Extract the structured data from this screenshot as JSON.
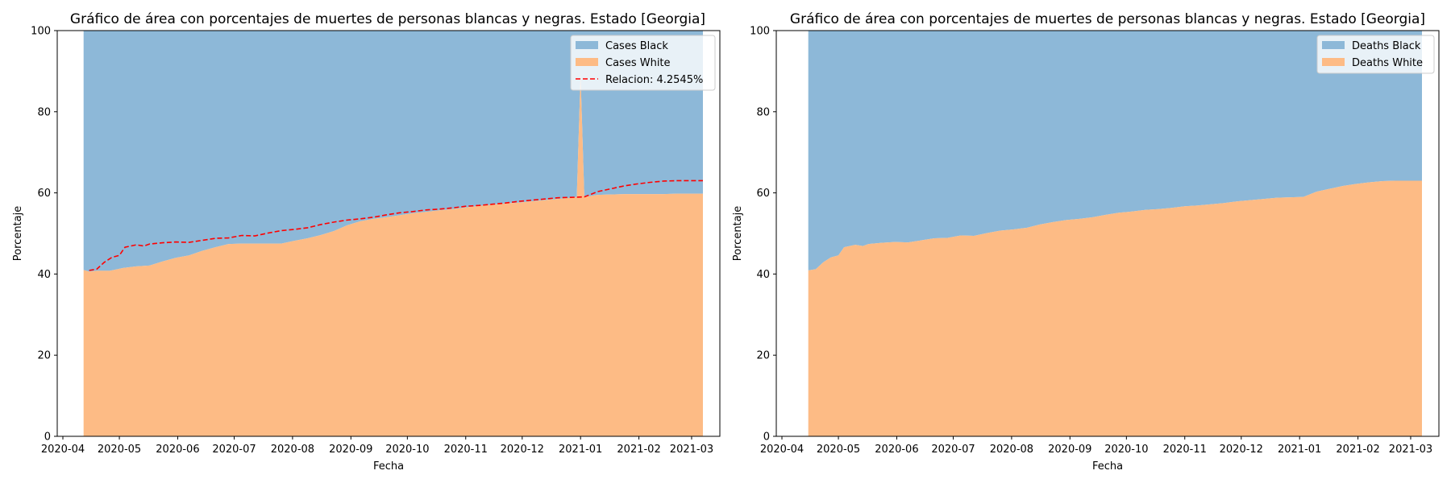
{
  "colors": {
    "black_area": "#8db8d8",
    "white_area": "#fdbb85",
    "relation_line": "#ff0000",
    "axis": "#000000"
  },
  "chart_data": [
    {
      "type": "area",
      "stacked": true,
      "title": "Gráfico de área con porcentajes de muertes de personas blancas y negras. Estado [Georgia]",
      "xlabel": "Fecha",
      "ylabel": "Porcentaje",
      "ylim": [
        0,
        100
      ],
      "xlim": [
        "2020-03-29",
        "2021-03-16"
      ],
      "yticks": [
        "0",
        "20",
        "40",
        "60",
        "80",
        "100"
      ],
      "xticks": [
        "2020-04",
        "2020-05",
        "2020-06",
        "2020-07",
        "2020-08",
        "2020-09",
        "2020-10",
        "2020-11",
        "2020-12",
        "2021-01",
        "2021-02",
        "2021-03"
      ],
      "legend_position": "top-right",
      "x": [
        "2020-04-12",
        "2020-04-15",
        "2020-04-19",
        "2020-04-26",
        "2020-05-03",
        "2020-05-10",
        "2020-05-17",
        "2020-05-24",
        "2020-05-31",
        "2020-06-07",
        "2020-06-14",
        "2020-06-21",
        "2020-06-28",
        "2020-07-05",
        "2020-07-12",
        "2020-07-19",
        "2020-07-26",
        "2020-08-02",
        "2020-08-09",
        "2020-08-16",
        "2020-08-23",
        "2020-08-30",
        "2020-09-06",
        "2020-09-13",
        "2020-09-20",
        "2020-09-27",
        "2020-10-04",
        "2020-10-11",
        "2020-10-18",
        "2020-10-25",
        "2020-11-01",
        "2020-11-08",
        "2020-11-15",
        "2020-11-22",
        "2020-11-29",
        "2020-12-06",
        "2020-12-13",
        "2020-12-20",
        "2020-12-27",
        "2020-12-30",
        "2021-01-01",
        "2021-01-03",
        "2021-01-06",
        "2021-01-10",
        "2021-01-17",
        "2021-01-24",
        "2021-01-31",
        "2021-02-07",
        "2021-02-14",
        "2021-02-21",
        "2021-02-28",
        "2021-03-07"
      ],
      "series": [
        {
          "name": "Cases White",
          "values": [
            41,
            40.6,
            40.8,
            40.8,
            41.5,
            41.9,
            42.1,
            43.1,
            44.0,
            44.6,
            45.7,
            46.6,
            47.4,
            47.5,
            47.5,
            47.5,
            47.5,
            48.2,
            48.8,
            49.6,
            50.6,
            52.0,
            53.0,
            53.6,
            54.0,
            54.5,
            55.0,
            55.3,
            55.7,
            56.0,
            56.4,
            56.8,
            57.1,
            57.4,
            57.6,
            57.9,
            58.2,
            58.5,
            58.8,
            59.0,
            89.0,
            59.0,
            59.2,
            59.5,
            59.6,
            59.7,
            59.7,
            59.7,
            59.7,
            59.8,
            59.8,
            59.8
          ]
        },
        {
          "name": "Cases Black",
          "values": [
            59,
            59.4,
            59.2,
            59.2,
            58.5,
            58.1,
            57.9,
            56.9,
            56.0,
            55.4,
            54.3,
            53.4,
            52.6,
            52.5,
            52.5,
            52.5,
            52.5,
            51.8,
            51.2,
            50.4,
            49.4,
            48.0,
            47.0,
            46.4,
            46.0,
            45.5,
            45.0,
            44.7,
            44.3,
            44.0,
            43.6,
            43.2,
            42.9,
            42.6,
            42.4,
            42.1,
            41.8,
            41.5,
            41.2,
            41.0,
            11.0,
            41.0,
            40.8,
            40.5,
            40.4,
            40.3,
            40.3,
            40.3,
            40.3,
            40.2,
            40.2,
            40.2
          ]
        }
      ],
      "relation_line": {
        "name": "Relacion: 4.2545%",
        "x": [
          "2020-04-15",
          "2020-04-19",
          "2020-04-23",
          "2020-04-27",
          "2020-05-01",
          "2020-05-04",
          "2020-05-10",
          "2020-05-14",
          "2020-05-17",
          "2020-05-24",
          "2020-05-31",
          "2020-06-07",
          "2020-06-14",
          "2020-06-21",
          "2020-06-28",
          "2020-07-05",
          "2020-07-12",
          "2020-07-19",
          "2020-07-26",
          "2020-08-02",
          "2020-08-09",
          "2020-08-16",
          "2020-08-23",
          "2020-08-30",
          "2020-09-06",
          "2020-09-13",
          "2020-09-20",
          "2020-09-27",
          "2020-10-04",
          "2020-10-11",
          "2020-10-18",
          "2020-10-25",
          "2020-11-01",
          "2020-11-08",
          "2020-11-15",
          "2020-11-22",
          "2020-11-29",
          "2020-12-06",
          "2020-12-13",
          "2020-12-20",
          "2020-12-27",
          "2021-01-03",
          "2021-01-10",
          "2021-01-17",
          "2021-01-24",
          "2021-01-31",
          "2021-02-07",
          "2021-02-14",
          "2021-02-21",
          "2021-02-28",
          "2021-03-07"
        ],
        "values": [
          40.9,
          41.2,
          42.9,
          44.1,
          44.6,
          46.6,
          47.2,
          46.9,
          47.4,
          47.7,
          47.9,
          47.8,
          48.3,
          48.8,
          48.9,
          49.5,
          49.4,
          50.1,
          50.7,
          51.0,
          51.4,
          52.2,
          52.8,
          53.3,
          53.6,
          54.0,
          54.6,
          55.1,
          55.4,
          55.8,
          56.0,
          56.3,
          56.7,
          56.9,
          57.2,
          57.5,
          57.9,
          58.2,
          58.5,
          58.8,
          58.9,
          59.0,
          60.3,
          61.0,
          61.7,
          62.2,
          62.6,
          62.9,
          63.0,
          63.0,
          63.0
        ]
      }
    },
    {
      "type": "area",
      "stacked": true,
      "title": "Gráfico de área con porcentajes de muertes de personas blancas y negras. Estado [Georgia]",
      "xlabel": "Fecha",
      "ylabel": "Porcentaje",
      "ylim": [
        0,
        100
      ],
      "xlim": [
        "2020-03-29",
        "2021-03-16"
      ],
      "yticks": [
        "0",
        "20",
        "40",
        "60",
        "80",
        "100"
      ],
      "xticks": [
        "2020-04",
        "2020-05",
        "2020-06",
        "2020-07",
        "2020-08",
        "2020-09",
        "2020-10",
        "2020-11",
        "2020-12",
        "2021-01",
        "2021-02",
        "2021-03"
      ],
      "legend_position": "top-right",
      "x": [
        "2020-04-15",
        "2020-04-19",
        "2020-04-23",
        "2020-04-27",
        "2020-05-01",
        "2020-05-04",
        "2020-05-10",
        "2020-05-14",
        "2020-05-17",
        "2020-05-24",
        "2020-05-31",
        "2020-06-07",
        "2020-06-14",
        "2020-06-21",
        "2020-06-28",
        "2020-07-05",
        "2020-07-12",
        "2020-07-19",
        "2020-07-26",
        "2020-08-02",
        "2020-08-09",
        "2020-08-16",
        "2020-08-23",
        "2020-08-30",
        "2020-09-06",
        "2020-09-13",
        "2020-09-20",
        "2020-09-27",
        "2020-10-04",
        "2020-10-11",
        "2020-10-18",
        "2020-10-25",
        "2020-11-01",
        "2020-11-08",
        "2020-11-15",
        "2020-11-22",
        "2020-11-29",
        "2020-12-06",
        "2020-12-13",
        "2020-12-20",
        "2020-12-27",
        "2021-01-03",
        "2021-01-10",
        "2021-01-17",
        "2021-01-24",
        "2021-01-31",
        "2021-02-07",
        "2021-02-14",
        "2021-02-21",
        "2021-02-28",
        "2021-03-07"
      ],
      "series": [
        {
          "name": "Deaths White",
          "values": [
            40.9,
            41.2,
            42.9,
            44.1,
            44.6,
            46.6,
            47.2,
            46.9,
            47.4,
            47.7,
            47.9,
            47.8,
            48.3,
            48.8,
            48.9,
            49.5,
            49.4,
            50.1,
            50.7,
            51.0,
            51.4,
            52.2,
            52.8,
            53.3,
            53.6,
            54.0,
            54.6,
            55.1,
            55.4,
            55.8,
            56.0,
            56.3,
            56.7,
            56.9,
            57.2,
            57.5,
            57.9,
            58.2,
            58.5,
            58.8,
            58.9,
            59.0,
            60.3,
            61.0,
            61.7,
            62.2,
            62.6,
            62.9,
            63.0,
            63.0,
            63.0
          ]
        },
        {
          "name": "Deaths Black",
          "values": [
            59.1,
            58.8,
            57.1,
            55.9,
            55.4,
            53.4,
            52.8,
            53.1,
            52.6,
            52.3,
            52.1,
            52.2,
            51.7,
            51.2,
            51.1,
            50.5,
            50.6,
            49.9,
            49.3,
            49.0,
            48.6,
            47.8,
            47.2,
            46.7,
            46.4,
            46.0,
            45.4,
            44.9,
            44.6,
            44.2,
            44.0,
            43.7,
            43.3,
            43.1,
            42.8,
            42.5,
            42.1,
            41.8,
            41.5,
            41.2,
            41.1,
            41.0,
            39.7,
            39.0,
            38.3,
            37.8,
            37.4,
            37.1,
            37.0,
            37.0,
            37.0
          ]
        }
      ]
    }
  ]
}
